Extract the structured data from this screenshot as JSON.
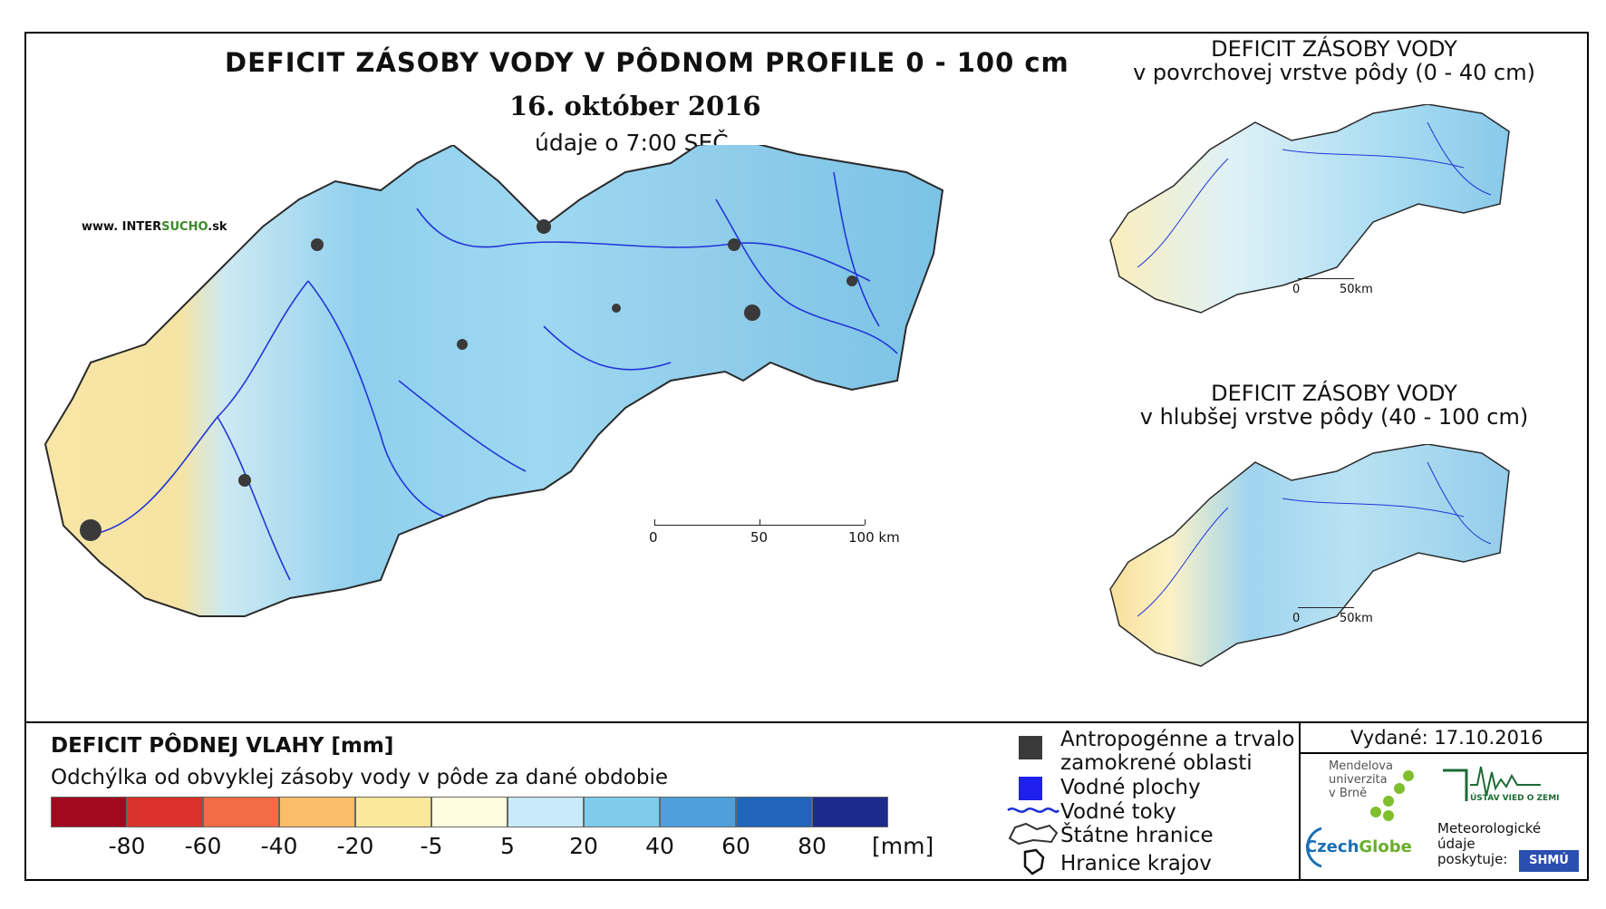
{
  "main": {
    "title": "DEFICIT ZÁSOBY VODY V PÔDNOM PROFILE 0 - 100 cm",
    "date": "16. október 2016",
    "observation": "údaje o 7:00 SEČ",
    "website_prefix": "www. INTER",
    "website_mid": "SUCHO",
    "website_suffix": ".sk",
    "scalebar": {
      "l0": "0",
      "l1": "50",
      "l2": "100 km"
    }
  },
  "inset_top": {
    "title_line1": "DEFICIT ZÁSOBY VODY",
    "title_line2": "v povrchovej vrstve pôdy (0 - 40 cm)",
    "scale_l0": "0",
    "scale_l1": "50km"
  },
  "inset_bottom": {
    "title_line1": "DEFICIT ZÁSOBY VODY",
    "title_line2": "v hlubšej vrstve pôdy (40 - 100 cm)",
    "scale_l0": "0",
    "scale_l1": "50km"
  },
  "legend": {
    "title": "DEFICIT PÔDNEJ VLAHY [mm]",
    "subtitle": "Odchýlka od obvyklej zásoby vody v pôde za dané obdobie",
    "colors": [
      "#a3091e",
      "#d9312b",
      "#f26d45",
      "#fbbd6a",
      "#fbe89a",
      "#fefde0",
      "#c8e9f7",
      "#7ecbec",
      "#4ea0dd",
      "#2164bb",
      "#1b2a8c"
    ],
    "labels": [
      "-80",
      "-60",
      "-40",
      "-20",
      "-5",
      "5",
      "20",
      "40",
      "60",
      "80"
    ],
    "unit": "[mm]"
  },
  "key": {
    "urban_line1": "Antropogénne a trvalo",
    "urban_line2": "zamokrené oblasti",
    "water_bodies": "Vodné plochy",
    "rivers": "Vodné toky",
    "border": "Štátne hranice",
    "regions": "Hranice krajov",
    "colors": {
      "urban": "#3a3a3a",
      "water": "#1f1ff0",
      "river": "#1c2fd6"
    }
  },
  "credits": {
    "issued": "Vydané: 17.10.2016",
    "mendel_1": "Mendelova",
    "mendel_2": "univerzita",
    "mendel_3": "v Brně",
    "czechglobe_a": "Czech",
    "czechglobe_b": "Globe",
    "ustav": "ÚSTAV VIED O ZEMI",
    "meteo_1": "Meteorologické",
    "meteo_2": "údaje",
    "meteo_3": "poskytuje:",
    "shmu": "SHMÚ"
  }
}
